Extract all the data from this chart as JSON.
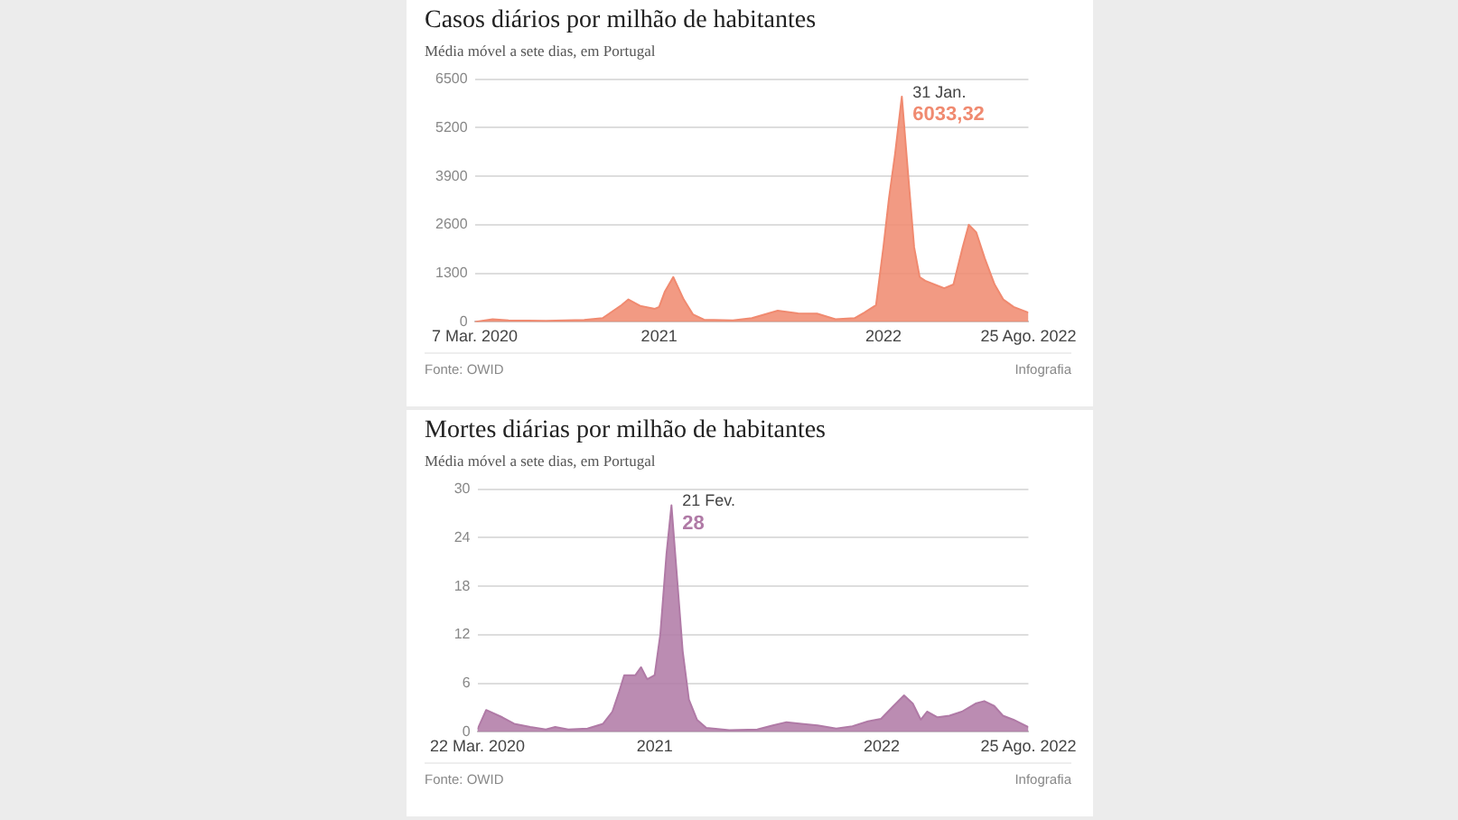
{
  "chart_data": [
    {
      "type": "area",
      "title": "Casos diários por milhão de habitantes",
      "subtitle": "Média móvel a sete dias, em Portugal",
      "x": [
        "2020-03-07",
        "2020-04-05",
        "2020-05-01",
        "2020-07-01",
        "2020-09-01",
        "2020-10-01",
        "2020-11-01",
        "2020-11-12",
        "2020-12-01",
        "2020-12-25",
        "2021-01-01",
        "2021-01-10",
        "2021-01-24",
        "2021-02-10",
        "2021-02-25",
        "2021-03-15",
        "2021-05-01",
        "2021-06-01",
        "2021-07-13",
        "2021-08-15",
        "2021-09-15",
        "2021-10-15",
        "2021-11-15",
        "2021-12-01",
        "2021-12-20",
        "2022-01-01",
        "2022-01-10",
        "2022-01-20",
        "2022-01-31",
        "2022-02-10",
        "2022-02-20",
        "2022-03-01",
        "2022-03-10",
        "2022-03-25",
        "2022-04-10",
        "2022-04-25",
        "2022-05-10",
        "2022-05-20",
        "2022-06-01",
        "2022-06-15",
        "2022-07-01",
        "2022-07-15",
        "2022-08-01",
        "2022-08-25"
      ],
      "series": [
        {
          "color": "#f08a70",
          "values": [
            0,
            70,
            40,
            30,
            50,
            100,
            450,
            600,
            430,
            350,
            400,
            800,
            1200,
            600,
            200,
            60,
            40,
            100,
            300,
            230,
            220,
            70,
            100,
            250,
            450,
            2000,
            3300,
            4500,
            6033.32,
            4000,
            2000,
            1200,
            1100,
            1000,
            900,
            1000,
            2000,
            2600,
            2400,
            1700,
            1000,
            600,
            400,
            250
          ]
        }
      ],
      "xlim": [
        "2020-03-07",
        "2022-08-25"
      ],
      "xticks": [
        {
          "value": "2020-03-07",
          "label": "7 Mar. 2020"
        },
        {
          "value": "2021-01-01",
          "label": "2021"
        },
        {
          "value": "2022-01-01",
          "label": "2022"
        },
        {
          "value": "2022-08-25",
          "label": "25 Ago. 2022"
        }
      ],
      "ylim": [
        0,
        6500
      ],
      "yticks": [
        0,
        1300,
        2600,
        3900,
        5200,
        6500
      ],
      "grid": "y",
      "annotations": [
        {
          "text": "31 Jan.",
          "x": "2022-01-31",
          "y": 6033.32
        },
        {
          "text": "6033,32",
          "x": "2022-01-31",
          "y": 6033.32
        },
        "Fonte: OWID",
        "Infografia"
      ]
    },
    {
      "type": "area",
      "title": "Mortes diárias por milhão de habitantes",
      "subtitle": "Média móvel a sete dias, em Portugal",
      "x": [
        "2020-03-22",
        "2020-04-05",
        "2020-05-01",
        "2020-05-20",
        "2020-06-15",
        "2020-07-10",
        "2020-07-25",
        "2020-08-15",
        "2020-09-15",
        "2020-10-10",
        "2020-10-25",
        "2020-11-05",
        "2020-11-13",
        "2020-12-01",
        "2020-12-10",
        "2020-12-20",
        "2021-01-01",
        "2021-01-10",
        "2021-01-20",
        "2021-01-28",
        "2021-02-05",
        "2021-02-15",
        "2021-02-25",
        "2021-03-10",
        "2021-03-25",
        "2021-05-01",
        "2021-06-15",
        "2021-07-10",
        "2021-08-01",
        "2021-08-25",
        "2021-09-20",
        "2021-10-20",
        "2021-11-15",
        "2021-12-10",
        "2021-12-31",
        "2022-01-20",
        "2022-02-06",
        "2022-02-20",
        "2022-03-05",
        "2022-03-15",
        "2022-04-01",
        "2022-04-20",
        "2022-05-10",
        "2022-06-01",
        "2022-06-15",
        "2022-07-01",
        "2022-07-15",
        "2022-08-01",
        "2022-08-25"
      ],
      "series": [
        {
          "color": "#b07aa6",
          "values": [
            0.3,
            2.7,
            1.8,
            1,
            0.6,
            0.3,
            0.6,
            0.3,
            0.4,
            1,
            2.5,
            5,
            7,
            7,
            8,
            6.5,
            7,
            12,
            22,
            28,
            20,
            10,
            4,
            1.5,
            0.5,
            0.2,
            0.3,
            0.8,
            1.2,
            1,
            0.8,
            0.4,
            0.7,
            1.3,
            1.6,
            3.2,
            4.5,
            3.5,
            1.5,
            2.5,
            1.8,
            2,
            2.5,
            3.5,
            3.8,
            3.2,
            2,
            1.5,
            0.6
          ]
        }
      ],
      "xlim": [
        "2020-03-22",
        "2022-08-25"
      ],
      "xticks": [
        {
          "value": "2020-03-22",
          "label": "22 Mar. 2020"
        },
        {
          "value": "2021-01-01",
          "label": "2021"
        },
        {
          "value": "2022-01-01",
          "label": "2022"
        },
        {
          "value": "2022-08-25",
          "label": "25 Ago. 2022"
        }
      ],
      "ylim": [
        0,
        30
      ],
      "yticks": [
        0,
        6,
        12,
        18,
        24,
        30
      ],
      "grid": "y",
      "annotations": [
        {
          "text": "21 Fev.",
          "x": "2021-01-28",
          "y": 28
        },
        {
          "text": "28",
          "x": "2021-01-28",
          "y": 28
        },
        "Fonte: OWID",
        "Infografia"
      ]
    }
  ]
}
